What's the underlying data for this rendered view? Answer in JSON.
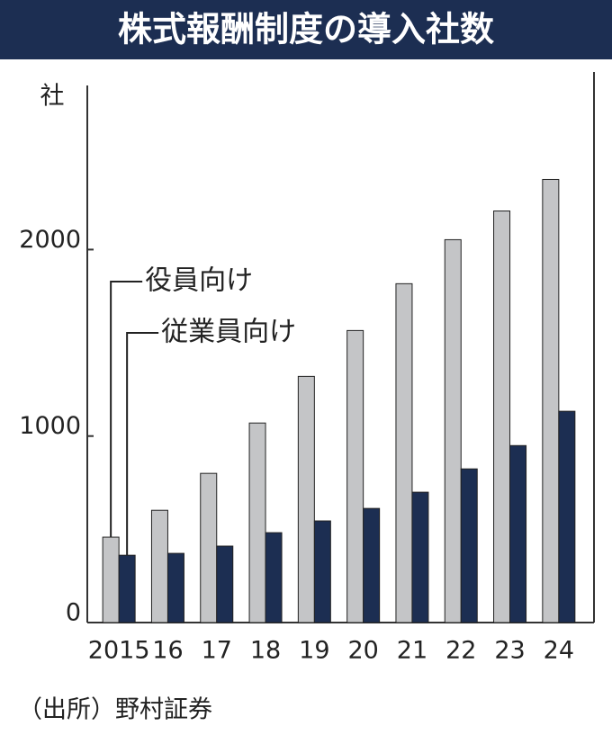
{
  "chart_data": {
    "type": "bar",
    "title": "株式報酬制度の導入社数",
    "y_label": "社",
    "categories": [
      "2015",
      "16",
      "17",
      "18",
      "19",
      "20",
      "21",
      "22",
      "23",
      "24"
    ],
    "series": [
      {
        "name": "役員向け",
        "color": "#c4c5c7",
        "values": [
          458,
          602,
          800,
          1070,
          1320,
          1566,
          1817,
          2053,
          2207,
          2376
        ]
      },
      {
        "name": "従業員向け",
        "color": "#1c2e52",
        "values": [
          361,
          371,
          410,
          482,
          545,
          612,
          699,
          824,
          949,
          1133
        ]
      }
    ],
    "ylim": [
      0,
      2880
    ],
    "yticks": [
      0,
      1000,
      2000
    ],
    "source": "（出所）野村証券"
  }
}
